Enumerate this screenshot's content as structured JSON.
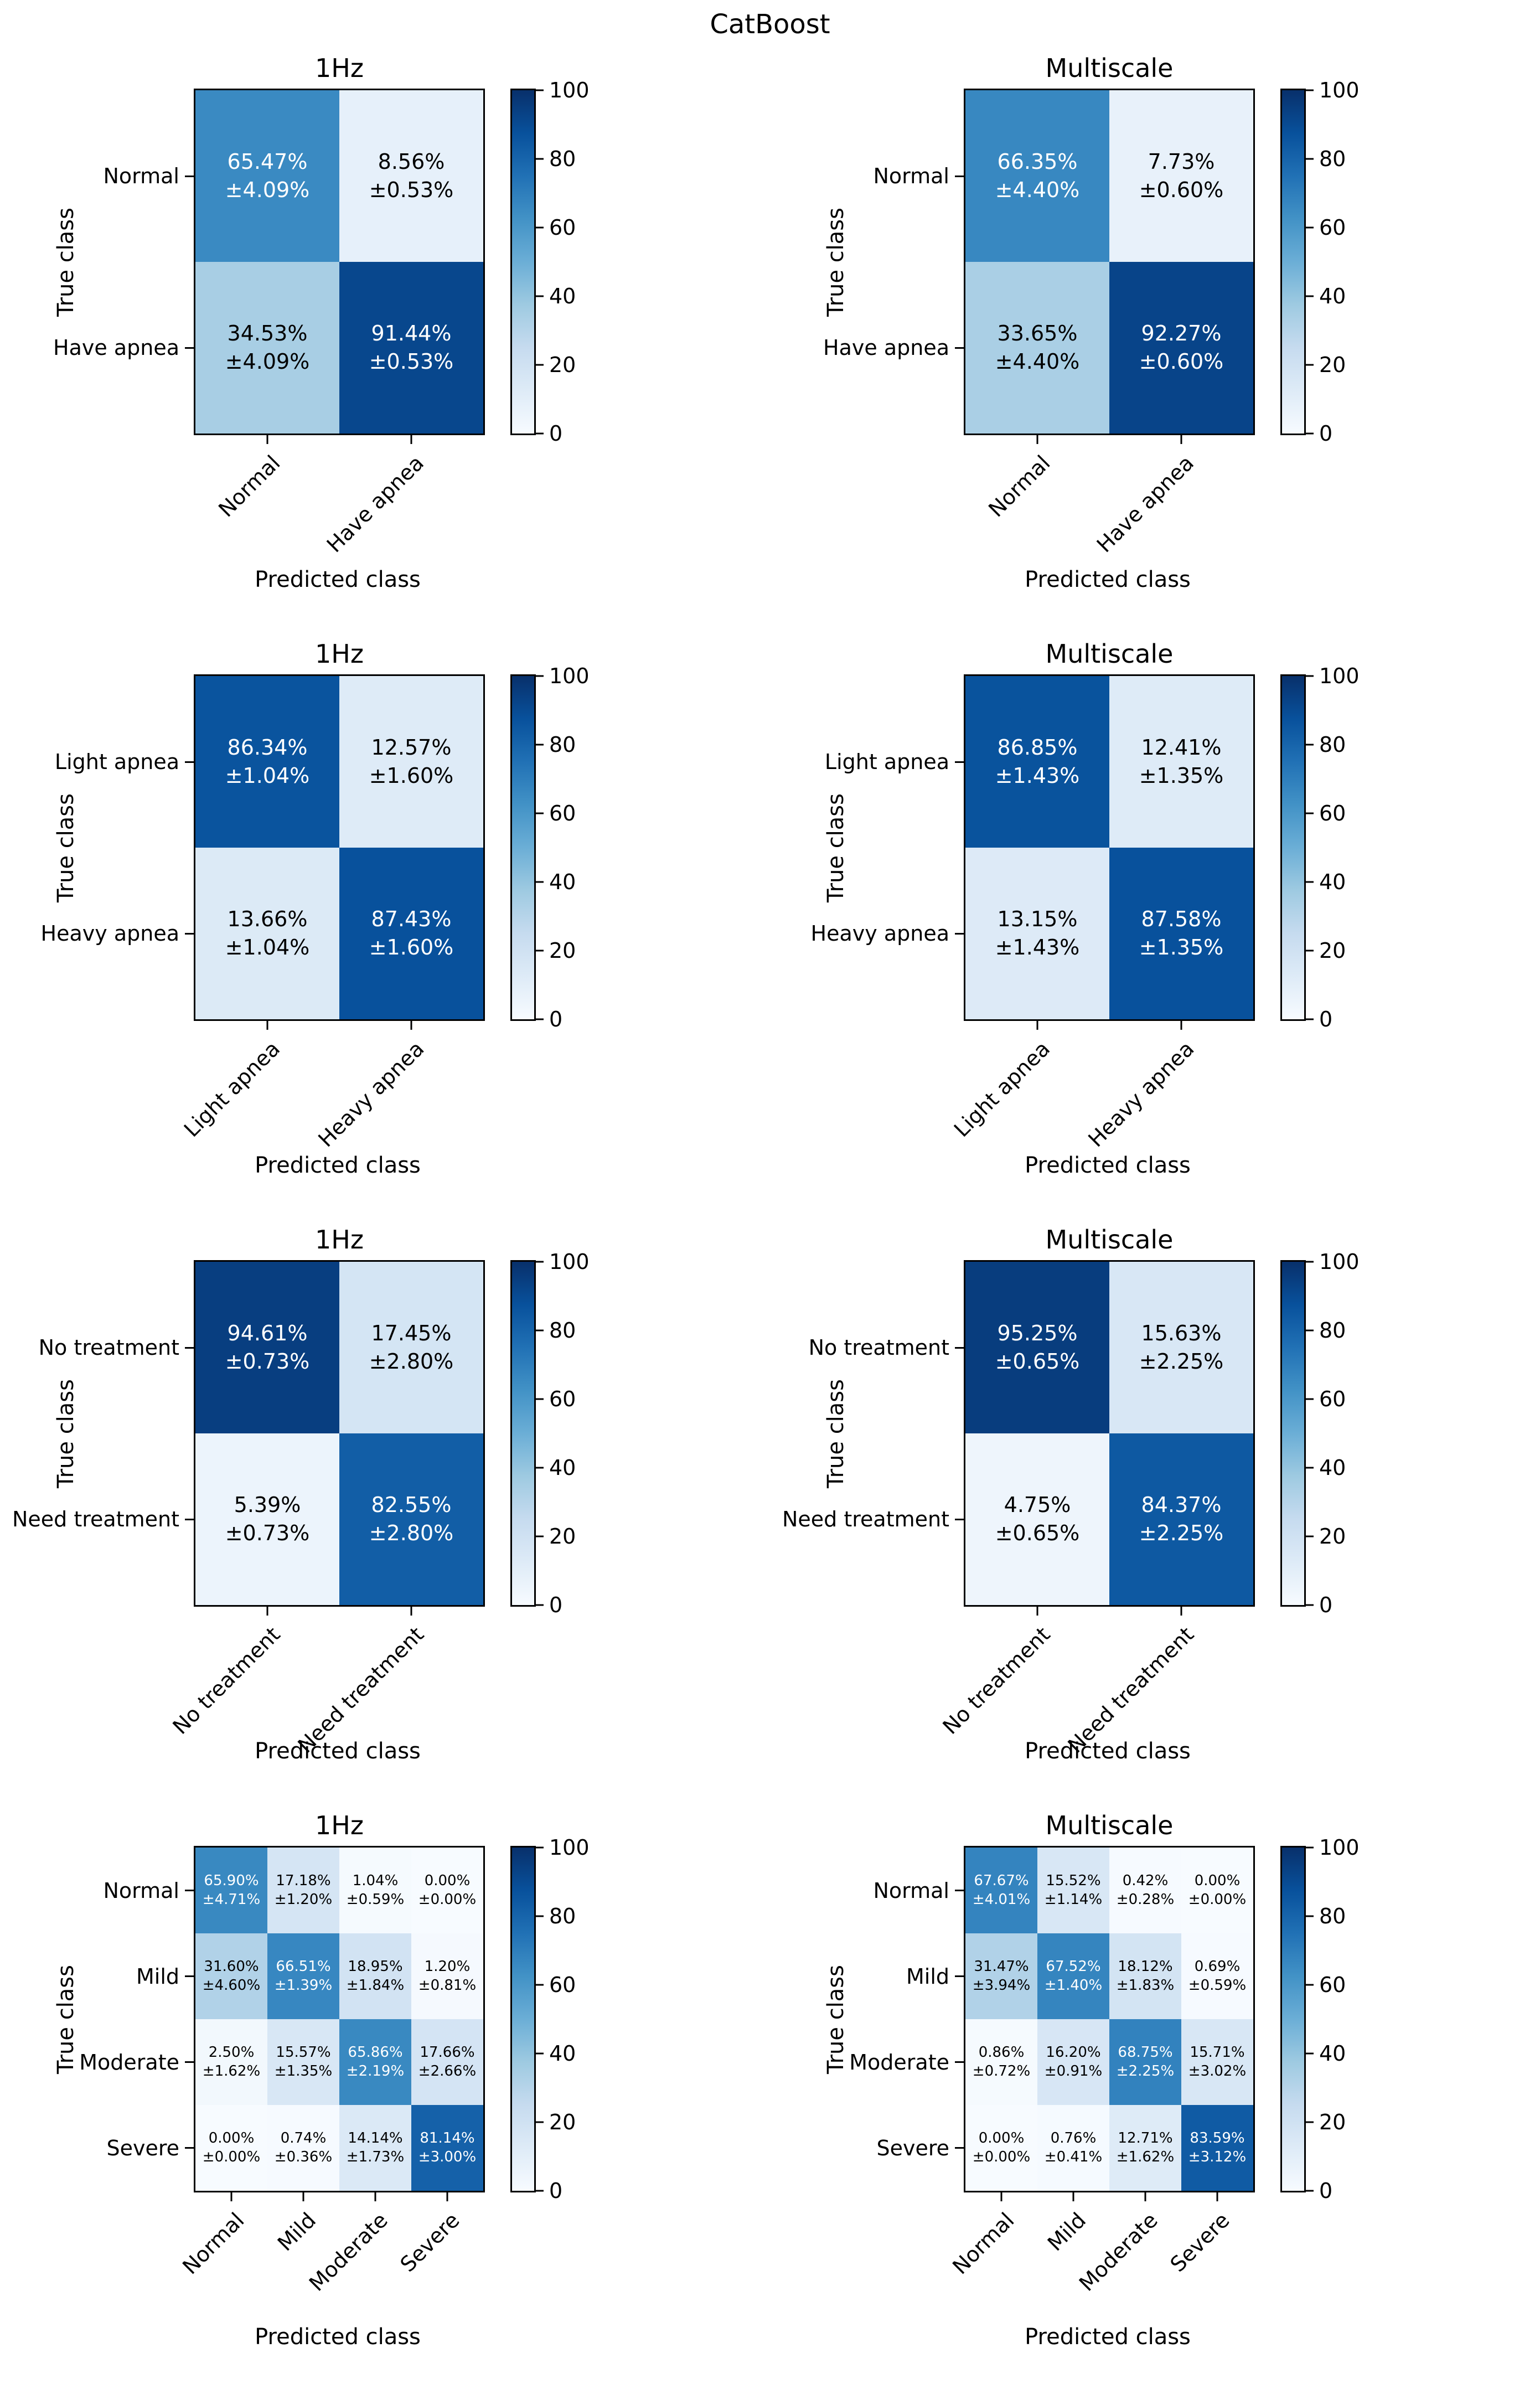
{
  "figure_title": "CatBoost",
  "axis": {
    "x_label": "Predicted class",
    "y_label": "True class"
  },
  "colorbar": {
    "ticks": [
      100,
      80,
      60,
      40,
      20,
      0
    ],
    "min": 0,
    "max": 100
  },
  "colormap": {
    "name": "Blues",
    "anchors": [
      [
        0,
        "#f7fbff"
      ],
      [
        12.5,
        "#deebf7"
      ],
      [
        25,
        "#c6dbef"
      ],
      [
        37.5,
        "#9ecae1"
      ],
      [
        50,
        "#6baed6"
      ],
      [
        62.5,
        "#4292c6"
      ],
      [
        75,
        "#2171b5"
      ],
      [
        87.5,
        "#08519c"
      ],
      [
        100,
        "#08306b"
      ]
    ],
    "text_threshold": 50,
    "text_color_dark_bg": "#ffffff",
    "text_color_light_bg": "#000000"
  },
  "chart_data": [
    {
      "type": "heatmap",
      "row": 1,
      "col": 1,
      "title": "1Hz",
      "categories": [
        "Normal",
        "Have apnea"
      ],
      "values": [
        [
          65.47,
          8.56
        ],
        [
          34.53,
          91.44
        ]
      ],
      "stds": [
        [
          4.09,
          0.53
        ],
        [
          4.09,
          0.53
        ]
      ]
    },
    {
      "type": "heatmap",
      "row": 1,
      "col": 2,
      "title": "Multiscale",
      "categories": [
        "Normal",
        "Have apnea"
      ],
      "values": [
        [
          66.35,
          7.73
        ],
        [
          33.65,
          92.27
        ]
      ],
      "stds": [
        [
          4.4,
          0.6
        ],
        [
          4.4,
          0.6
        ]
      ]
    },
    {
      "type": "heatmap",
      "row": 2,
      "col": 1,
      "title": "1Hz",
      "categories": [
        "Light apnea",
        "Heavy apnea"
      ],
      "values": [
        [
          86.34,
          12.57
        ],
        [
          13.66,
          87.43
        ]
      ],
      "stds": [
        [
          1.04,
          1.6
        ],
        [
          1.04,
          1.6
        ]
      ]
    },
    {
      "type": "heatmap",
      "row": 2,
      "col": 2,
      "title": "Multiscale",
      "categories": [
        "Light apnea",
        "Heavy apnea"
      ],
      "values": [
        [
          86.85,
          12.41
        ],
        [
          13.15,
          87.58
        ]
      ],
      "stds": [
        [
          1.43,
          1.35
        ],
        [
          1.43,
          1.35
        ]
      ]
    },
    {
      "type": "heatmap",
      "row": 3,
      "col": 1,
      "title": "1Hz",
      "categories": [
        "No treatment",
        "Need treatment"
      ],
      "values": [
        [
          94.61,
          17.45
        ],
        [
          5.39,
          82.55
        ]
      ],
      "stds": [
        [
          0.73,
          2.8
        ],
        [
          0.73,
          2.8
        ]
      ]
    },
    {
      "type": "heatmap",
      "row": 3,
      "col": 2,
      "title": "Multiscale",
      "categories": [
        "No treatment",
        "Need treatment"
      ],
      "values": [
        [
          95.25,
          15.63
        ],
        [
          4.75,
          84.37
        ]
      ],
      "stds": [
        [
          0.65,
          2.25
        ],
        [
          0.65,
          2.25
        ]
      ]
    },
    {
      "type": "heatmap",
      "row": 4,
      "col": 1,
      "title": "1Hz",
      "categories": [
        "Normal",
        "Mild",
        "Moderate",
        "Severe"
      ],
      "values": [
        [
          65.9,
          17.18,
          1.04,
          0.0
        ],
        [
          31.6,
          66.51,
          18.95,
          1.2
        ],
        [
          2.5,
          15.57,
          65.86,
          17.66
        ],
        [
          0.0,
          0.74,
          14.14,
          81.14
        ]
      ],
      "stds": [
        [
          4.71,
          1.2,
          0.59,
          0.0
        ],
        [
          4.6,
          1.39,
          1.84,
          0.81
        ],
        [
          1.62,
          1.35,
          2.19,
          2.66
        ],
        [
          0.0,
          0.36,
          1.73,
          3.0
        ]
      ]
    },
    {
      "type": "heatmap",
      "row": 4,
      "col": 2,
      "title": "Multiscale",
      "categories": [
        "Normal",
        "Mild",
        "Moderate",
        "Severe"
      ],
      "values": [
        [
          67.67,
          15.52,
          0.42,
          0.0
        ],
        [
          31.47,
          67.52,
          18.12,
          0.69
        ],
        [
          0.86,
          16.2,
          68.75,
          15.71
        ],
        [
          0.0,
          0.76,
          12.71,
          83.59
        ]
      ],
      "stds": [
        [
          4.01,
          1.14,
          0.28,
          0.0
        ],
        [
          3.94,
          1.4,
          1.83,
          0.59
        ],
        [
          0.72,
          0.91,
          2.25,
          3.02
        ],
        [
          0.0,
          0.41,
          1.62,
          3.12
        ]
      ]
    }
  ]
}
